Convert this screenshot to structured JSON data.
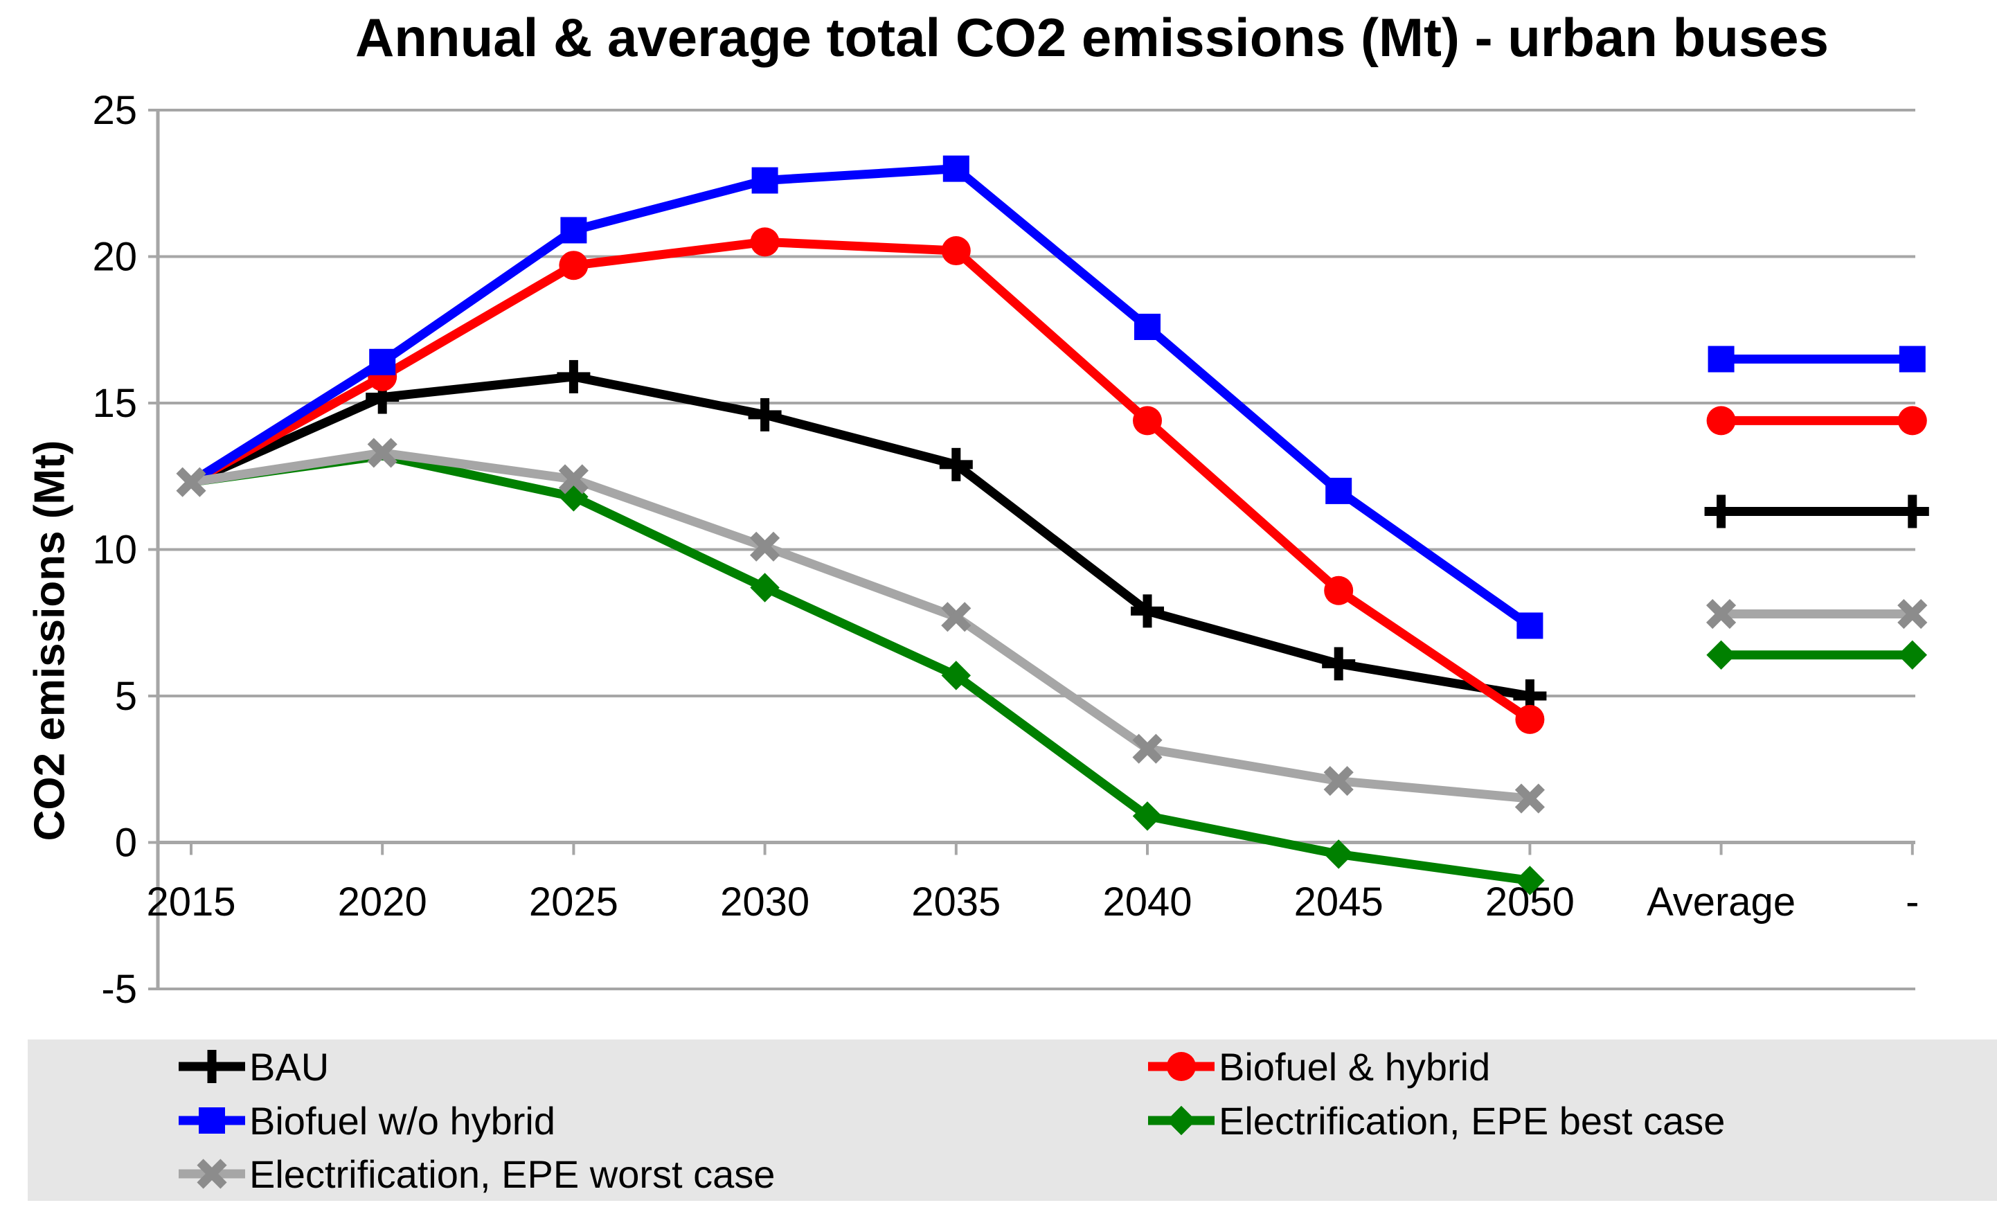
{
  "title": "Annual & average total CO2 emissions (Mt) - urban buses",
  "y_axis": {
    "title": "CO2 emissions (Mt)",
    "tick_values": [
      25,
      20,
      15,
      10,
      5,
      0,
      -5
    ],
    "tick_labels": [
      "25",
      "20",
      "15",
      "10",
      "5",
      "0",
      "-5"
    ]
  },
  "x_axis": {
    "categories": [
      "2015",
      "2020",
      "2025",
      "2030",
      "2035",
      "2040",
      "2045",
      "2050",
      "Average",
      "-"
    ]
  },
  "colors": {
    "grid": "#A6A6A6",
    "axis": "#A6A6A6",
    "legend_background": "#E6E6E6",
    "text": "#000000",
    "background": "#FFFFFF"
  },
  "chart_data": {
    "type": "line",
    "title": "Annual & average total CO2 emissions (Mt) - urban buses",
    "xlabel": "",
    "ylabel": "CO2 emissions (Mt)",
    "ylim": [
      -5,
      25
    ],
    "grid": true,
    "legend_position": "bottom",
    "categories": [
      "2015",
      "2020",
      "2025",
      "2030",
      "2035",
      "2040",
      "2045",
      "2050"
    ],
    "average_categories": [
      "Average",
      "-"
    ],
    "series": [
      {
        "name": "BAU",
        "color": "#000000",
        "marker": "plus",
        "marker_color": "#000000",
        "first_marker_index": 1,
        "values": [
          12.3,
          15.2,
          15.9,
          14.6,
          12.9,
          7.9,
          6.1,
          5.0
        ],
        "average": 11.3
      },
      {
        "name": "Biofuel & hybrid",
        "color": "#FF0000",
        "marker": "circle",
        "marker_color": "#FF0000",
        "first_marker_index": 1,
        "values": [
          12.3,
          15.9,
          19.7,
          20.5,
          20.2,
          14.4,
          8.6,
          4.2
        ],
        "average": 14.4
      },
      {
        "name": "Biofuel w/o hybrid",
        "color": "#0000FF",
        "marker": "square",
        "marker_color": "#0000FF",
        "first_marker_index": 1,
        "values": [
          12.3,
          16.4,
          20.9,
          22.6,
          23.0,
          17.6,
          12.0,
          7.4
        ],
        "average": 16.5
      },
      {
        "name": "Electrification, EPE best case",
        "color": "#008000",
        "marker": "diamond",
        "marker_color": "#008000",
        "first_marker_index": 2,
        "values": [
          12.3,
          13.2,
          11.8,
          8.7,
          5.7,
          0.9,
          -0.4,
          -1.3
        ],
        "average": 6.4
      },
      {
        "name": "Electrification, EPE worst case",
        "color": "#A6A6A6",
        "marker": "x",
        "marker_color": "#8C8C8C",
        "first_marker_index": 0,
        "values": [
          12.3,
          13.3,
          12.4,
          10.1,
          7.7,
          3.2,
          2.1,
          1.5
        ],
        "average": 7.8
      }
    ]
  }
}
